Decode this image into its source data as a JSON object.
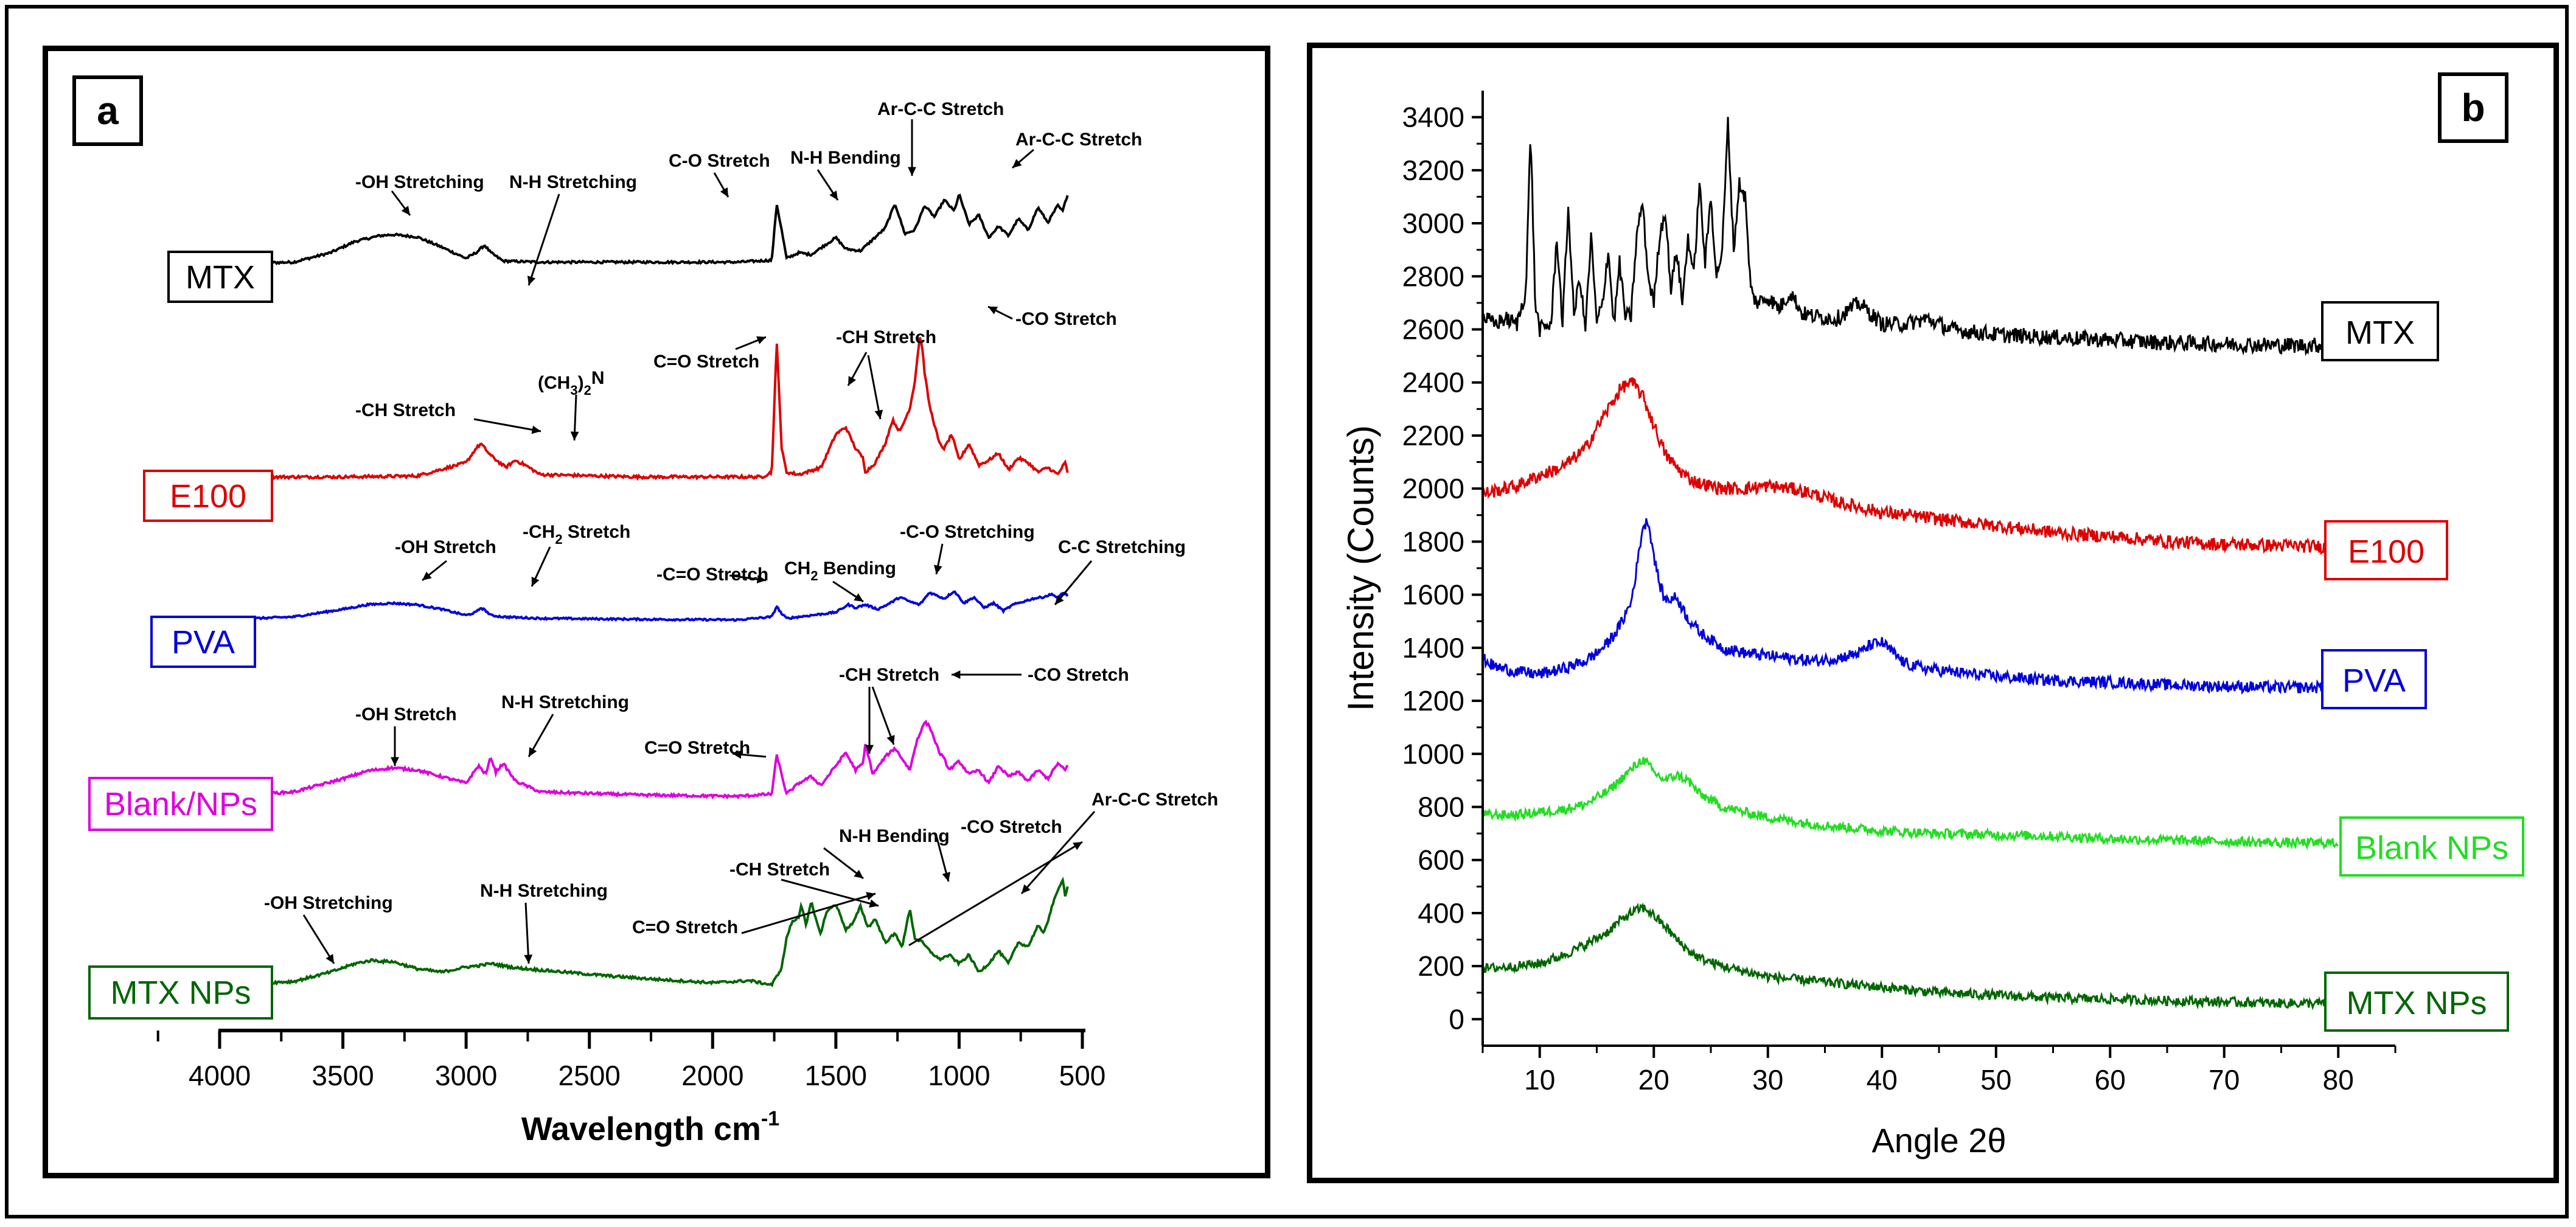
{
  "chart_data": [
    {
      "panel": "a",
      "type": "line",
      "panel_label": "a",
      "title": "",
      "xlabel": "Wavelength cm",
      "xlabel_sup": "-1",
      "ylabel": "",
      "xlim": [
        4000,
        500
      ],
      "x_ticks": [
        "4000",
        "3500",
        "3000",
        "2500",
        "2000",
        "1500",
        "1000",
        "500"
      ],
      "series": [
        {
          "name": "MTX",
          "color": "#000000",
          "x": [
            4000,
            3700,
            3550,
            3450,
            3350,
            3300,
            3200,
            3100,
            3000,
            2960,
            2925,
            2900,
            2850,
            2700,
            2300,
            1900,
            1760,
            1740,
            1720,
            1700,
            1650,
            1600,
            1500,
            1460,
            1400,
            1300,
            1260,
            1220,
            1180,
            1140,
            1100,
            1060,
            1020,
            1000,
            960,
            920,
            880,
            840,
            800,
            760,
            720,
            680,
            640,
            600,
            580,
            560
          ],
          "y": [
            0.0,
            0.05,
            0.3,
            0.6,
            0.75,
            0.78,
            0.72,
            0.45,
            0.15,
            0.3,
            0.5,
            0.3,
            0.08,
            0.05,
            0.05,
            0.05,
            0.1,
            1.6,
            0.9,
            0.15,
            0.3,
            0.25,
            0.7,
            0.4,
            0.35,
            0.95,
            1.6,
            0.8,
            0.9,
            1.55,
            1.25,
            1.7,
            1.4,
            1.85,
            1.05,
            1.3,
            0.7,
            1.0,
            0.75,
            1.2,
            0.9,
            1.5,
            1.1,
            1.55,
            1.4,
            1.85
          ]
        },
        {
          "name": "E100",
          "color": "#dd0000",
          "x": [
            4000,
            3500,
            3200,
            3000,
            2960,
            2940,
            2900,
            2840,
            2800,
            2760,
            2700,
            2300,
            1800,
            1760,
            1740,
            1730,
            1720,
            1700,
            1650,
            1560,
            1500,
            1460,
            1420,
            1390,
            1380,
            1340,
            1300,
            1270,
            1240,
            1200,
            1180,
            1160,
            1150,
            1140,
            1120,
            1080,
            1060,
            1030,
            1000,
            960,
            920,
            880,
            840,
            800,
            760,
            720,
            680,
            640,
            600,
            570,
            560
          ],
          "y": [
            0.0,
            0.0,
            0.02,
            0.3,
            0.6,
            0.7,
            0.45,
            0.2,
            0.35,
            0.25,
            0.05,
            0.0,
            0.0,
            0.1,
            2.85,
            1.8,
            0.6,
            0.1,
            0.05,
            0.2,
            0.9,
            1.05,
            0.6,
            0.4,
            0.1,
            0.3,
            0.7,
            1.2,
            0.95,
            1.45,
            2.0,
            2.95,
            2.75,
            2.2,
            1.5,
            0.7,
            0.6,
            0.9,
            0.35,
            0.7,
            0.25,
            0.35,
            0.5,
            0.15,
            0.4,
            0.3,
            0.1,
            0.2,
            0.05,
            0.3,
            0.1
          ]
        },
        {
          "name": "PVA",
          "color": "#0000dd",
          "x": [
            4000,
            3700,
            3500,
            3400,
            3300,
            3200,
            3100,
            3000,
            2960,
            2940,
            2920,
            2900,
            2850,
            2700,
            2300,
            1900,
            1760,
            1740,
            1720,
            1700,
            1650,
            1600,
            1500,
            1450,
            1420,
            1380,
            1330,
            1280,
            1240,
            1200,
            1160,
            1120,
            1090,
            1060,
            1020,
            980,
            940,
            900,
            860,
            820,
            780,
            740,
            700,
            660,
            620,
            600,
            580,
            560
          ],
          "y": [
            0.0,
            0.1,
            0.35,
            0.5,
            0.55,
            0.5,
            0.35,
            0.15,
            0.25,
            0.4,
            0.3,
            0.15,
            0.1,
            0.05,
            0.02,
            0.0,
            0.1,
            0.45,
            0.2,
            0.05,
            0.1,
            0.15,
            0.25,
            0.5,
            0.4,
            0.5,
            0.35,
            0.55,
            0.75,
            0.6,
            0.5,
            0.9,
            0.8,
            0.7,
            0.95,
            0.55,
            0.75,
            0.4,
            0.55,
            0.3,
            0.5,
            0.6,
            0.7,
            0.75,
            0.85,
            0.7,
            0.9,
            0.8
          ]
        },
        {
          "name": "Blank/NPs",
          "color": "#dd00dd",
          "x": [
            4000,
            3700,
            3500,
            3400,
            3300,
            3200,
            3100,
            3000,
            2950,
            2920,
            2900,
            2880,
            2850,
            2800,
            2700,
            2300,
            1900,
            1760,
            1740,
            1720,
            1700,
            1650,
            1600,
            1560,
            1500,
            1460,
            1420,
            1390,
            1380,
            1350,
            1300,
            1260,
            1230,
            1200,
            1170,
            1150,
            1140,
            1120,
            1100,
            1080,
            1060,
            1040,
            1000,
            960,
            920,
            880,
            860,
            840,
            800,
            760,
            720,
            680,
            640,
            600,
            570,
            560
          ],
          "y": [
            0.0,
            0.1,
            0.4,
            0.58,
            0.65,
            0.6,
            0.45,
            0.3,
            0.7,
            0.5,
            0.9,
            0.55,
            0.75,
            0.35,
            0.1,
            0.03,
            0.0,
            0.05,
            0.95,
            0.5,
            0.05,
            0.3,
            0.45,
            0.25,
            0.7,
            1.0,
            0.6,
            0.75,
            1.2,
            0.5,
            0.9,
            1.1,
            0.85,
            0.6,
            1.3,
            1.55,
            1.7,
            1.6,
            1.3,
            1.0,
            0.85,
            0.6,
            0.8,
            0.5,
            0.6,
            0.3,
            0.5,
            0.7,
            0.45,
            0.55,
            0.35,
            0.6,
            0.4,
            0.75,
            0.6,
            0.7
          ]
        },
        {
          "name": "MTX NPs",
          "color": "#006600",
          "x": [
            4000,
            3700,
            3550,
            3450,
            3380,
            3340,
            3300,
            3200,
            3100,
            3000,
            2950,
            2900,
            2800,
            2600,
            2400,
            2200,
            2000,
            1850,
            1760,
            1720,
            1700,
            1680,
            1650,
            1640,
            1620,
            1600,
            1580,
            1560,
            1540,
            1500,
            1460,
            1430,
            1400,
            1370,
            1340,
            1300,
            1260,
            1230,
            1200,
            1180,
            1150,
            1120,
            1080,
            1040,
            1000,
            960,
            920,
            880,
            840,
            800,
            760,
            720,
            680,
            660,
            640,
            620,
            600,
            580,
            570,
            560
          ],
          "y": [
            0.0,
            0.08,
            0.3,
            0.5,
            0.58,
            0.55,
            0.55,
            0.38,
            0.3,
            0.42,
            0.45,
            0.5,
            0.4,
            0.3,
            0.2,
            0.12,
            0.05,
            0.1,
            0.0,
            0.4,
            1.1,
            1.45,
            1.6,
            1.9,
            1.4,
            1.95,
            1.5,
            1.2,
            1.7,
            1.9,
            1.3,
            1.45,
            1.85,
            1.35,
            1.55,
            1.0,
            1.2,
            0.9,
            1.8,
            1.1,
            1.0,
            0.8,
            0.6,
            0.7,
            0.5,
            0.7,
            0.3,
            0.5,
            0.8,
            0.5,
            1.0,
            0.9,
            1.4,
            1.2,
            1.5,
            1.9,
            2.2,
            2.5,
            2.1,
            2.3
          ]
        }
      ],
      "annotations": {
        "mtx_oh": "-OH Stretching",
        "mtx_nh": "N-H Stretching",
        "mtx_co": "C-O Stretch",
        "mtx_nhb": "N-H Bending",
        "mtx_arcc1": "Ar-C-C Stretch",
        "mtx_arcc2": "Ar-C-C  Stretch",
        "e100_co_str": "-CO Stretch",
        "e100_c_o": "C=O Stretch",
        "e100_ch": "-CH Stretch",
        "e100_ch_b": "-CH Stretch",
        "e100_ch3": "(CH",
        "e100_ch3_sub1": "3",
        "e100_ch3_mid": ")",
        "e100_ch3_sub2": "2",
        "e100_ch3_n": "N",
        "pva_oh": "-OH Stretch",
        "pva_ch2": "-CH",
        "pva_ch2_sub": "2",
        "pva_ch2_end": " Stretch",
        "pva_co": "-C=O Stretch",
        "pva_ch2b": "CH",
        "pva_ch2b_sub": "2",
        "pva_ch2b_end": " Bending",
        "pva_costr": "-C-O Stretching",
        "pva_cc": "C-C Stretching",
        "bnp_oh": "-OH Stretch",
        "bnp_nh": "N-H Stretching",
        "bnp_ch": "-CH Stretch",
        "bnp_co_str": "-CO Stretch",
        "bnp_c_o": "C=O Stretch",
        "mnp_oh": "-OH Stretching",
        "mnp_nh": "N-H Stretching",
        "mnp_nhb": "N-H Bending",
        "mnp_ch": "-CH Stretch",
        "mnp_co_str": "-CO Stretch",
        "mnp_arcc": "Ar-C-C Stretch",
        "mnp_c_o": "C=O Stretch"
      }
    },
    {
      "panel": "b",
      "type": "line",
      "panel_label": "b",
      "title": "",
      "xlabel": "Angle 2θ",
      "ylabel": "Intensity (Counts)",
      "xlim": [
        5,
        85
      ],
      "ylim": [
        -100,
        3500
      ],
      "x_ticks": [
        "10",
        "20",
        "30",
        "40",
        "50",
        "60",
        "70",
        "80"
      ],
      "y_ticks": [
        "0",
        "200",
        "400",
        "600",
        "800",
        "1000",
        "1200",
        "1400",
        "1600",
        "1800",
        "2000",
        "2200",
        "2400",
        "2600",
        "2800",
        "3000",
        "3200",
        "3400"
      ],
      "series": [
        {
          "name": "MTX",
          "color": "#000000",
          "x": [
            5,
            6,
            7,
            8,
            8.8,
            9.2,
            9.6,
            10,
            11,
            11.5,
            12,
            12.5,
            13,
            13.5,
            14,
            14.5,
            15,
            15.5,
            16,
            16.5,
            17,
            17.5,
            18,
            18.5,
            19,
            19.5,
            20,
            20.5,
            21,
            21.5,
            22,
            22.5,
            23,
            23.5,
            24,
            24.5,
            25,
            25.5,
            26,
            26.5,
            27,
            27.5,
            28,
            28.5,
            29,
            30,
            31,
            32,
            33,
            34,
            36,
            38,
            39,
            40,
            42,
            44,
            46,
            50,
            55,
            60,
            65,
            70,
            75,
            80
          ],
          "y": [
            2650,
            2620,
            2640,
            2620,
            2750,
            3360,
            2700,
            2600,
            2620,
            2950,
            2620,
            3060,
            2650,
            2800,
            2600,
            2950,
            2620,
            2700,
            2900,
            2620,
            2850,
            2650,
            2650,
            2950,
            3080,
            2800,
            2700,
            2950,
            3050,
            2750,
            2900,
            2700,
            2950,
            2800,
            3150,
            2850,
            3100,
            2800,
            2900,
            3380,
            2900,
            3150,
            3100,
            2750,
            2700,
            2720,
            2680,
            2740,
            2660,
            2650,
            2640,
            2700,
            2660,
            2620,
            2620,
            2640,
            2600,
            2580,
            2570,
            2560,
            2550,
            2545,
            2540,
            2540
          ]
        },
        {
          "name": "E100",
          "color": "#dd0000",
          "x": [
            5,
            8,
            10,
            12,
            14,
            15,
            16,
            17,
            17.5,
            18,
            18.5,
            19,
            20,
            21,
            22,
            23,
            24,
            25,
            26,
            28,
            30,
            32,
            34,
            36,
            38,
            40,
            44,
            48,
            52,
            56,
            60,
            65,
            70,
            75,
            80
          ],
          "y": [
            1980,
            2010,
            2050,
            2080,
            2150,
            2230,
            2300,
            2370,
            2390,
            2400,
            2380,
            2350,
            2240,
            2130,
            2080,
            2040,
            2020,
            2010,
            2000,
            2000,
            2010,
            2000,
            1980,
            1950,
            1930,
            1910,
            1890,
            1870,
            1850,
            1830,
            1820,
            1800,
            1790,
            1785,
            1780
          ]
        },
        {
          "name": "PVA",
          "color": "#0000dd",
          "x": [
            5,
            6,
            8,
            10,
            12,
            14,
            15,
            16,
            17,
            18,
            18.5,
            19,
            19.5,
            20,
            20.5,
            21,
            22,
            23,
            24,
            25,
            26,
            28,
            30,
            32,
            34,
            36,
            38,
            39,
            40,
            41,
            42,
            44,
            48,
            52,
            56,
            60,
            65,
            70,
            75,
            80
          ],
          "y": [
            1360,
            1330,
            1310,
            1300,
            1320,
            1350,
            1380,
            1420,
            1480,
            1570,
            1700,
            1850,
            1880,
            1750,
            1640,
            1580,
            1590,
            1510,
            1460,
            1430,
            1400,
            1380,
            1370,
            1360,
            1350,
            1360,
            1380,
            1410,
            1420,
            1380,
            1340,
            1320,
            1300,
            1285,
            1275,
            1270,
            1260,
            1255,
            1250,
            1250
          ]
        },
        {
          "name": "Blank NPs",
          "color": "#22dd22",
          "x": [
            5,
            8,
            10,
            12,
            14,
            16,
            17,
            18,
            19,
            19.5,
            20,
            21,
            22,
            23,
            24,
            26,
            28,
            30,
            35,
            40,
            45,
            50,
            55,
            60,
            65,
            70,
            75,
            80
          ],
          "y": [
            770,
            770,
            780,
            790,
            810,
            860,
            900,
            940,
            980,
            960,
            930,
            900,
            920,
            900,
            850,
            800,
            780,
            760,
            730,
            710,
            700,
            695,
            690,
            680,
            675,
            670,
            665,
            665
          ]
        },
        {
          "name": "MTX NPs",
          "color": "#006600",
          "x": [
            5,
            8,
            10,
            12,
            14,
            16,
            17,
            18,
            19,
            19.5,
            20,
            21,
            22,
            23,
            24,
            26,
            28,
            30,
            35,
            40,
            45,
            50,
            55,
            60,
            65,
            70,
            75,
            80
          ],
          "y": [
            190,
            200,
            210,
            240,
            280,
            330,
            370,
            400,
            420,
            410,
            390,
            350,
            300,
            260,
            230,
            200,
            180,
            160,
            140,
            120,
            100,
            90,
            80,
            75,
            70,
            65,
            60,
            60
          ]
        }
      ]
    }
  ]
}
